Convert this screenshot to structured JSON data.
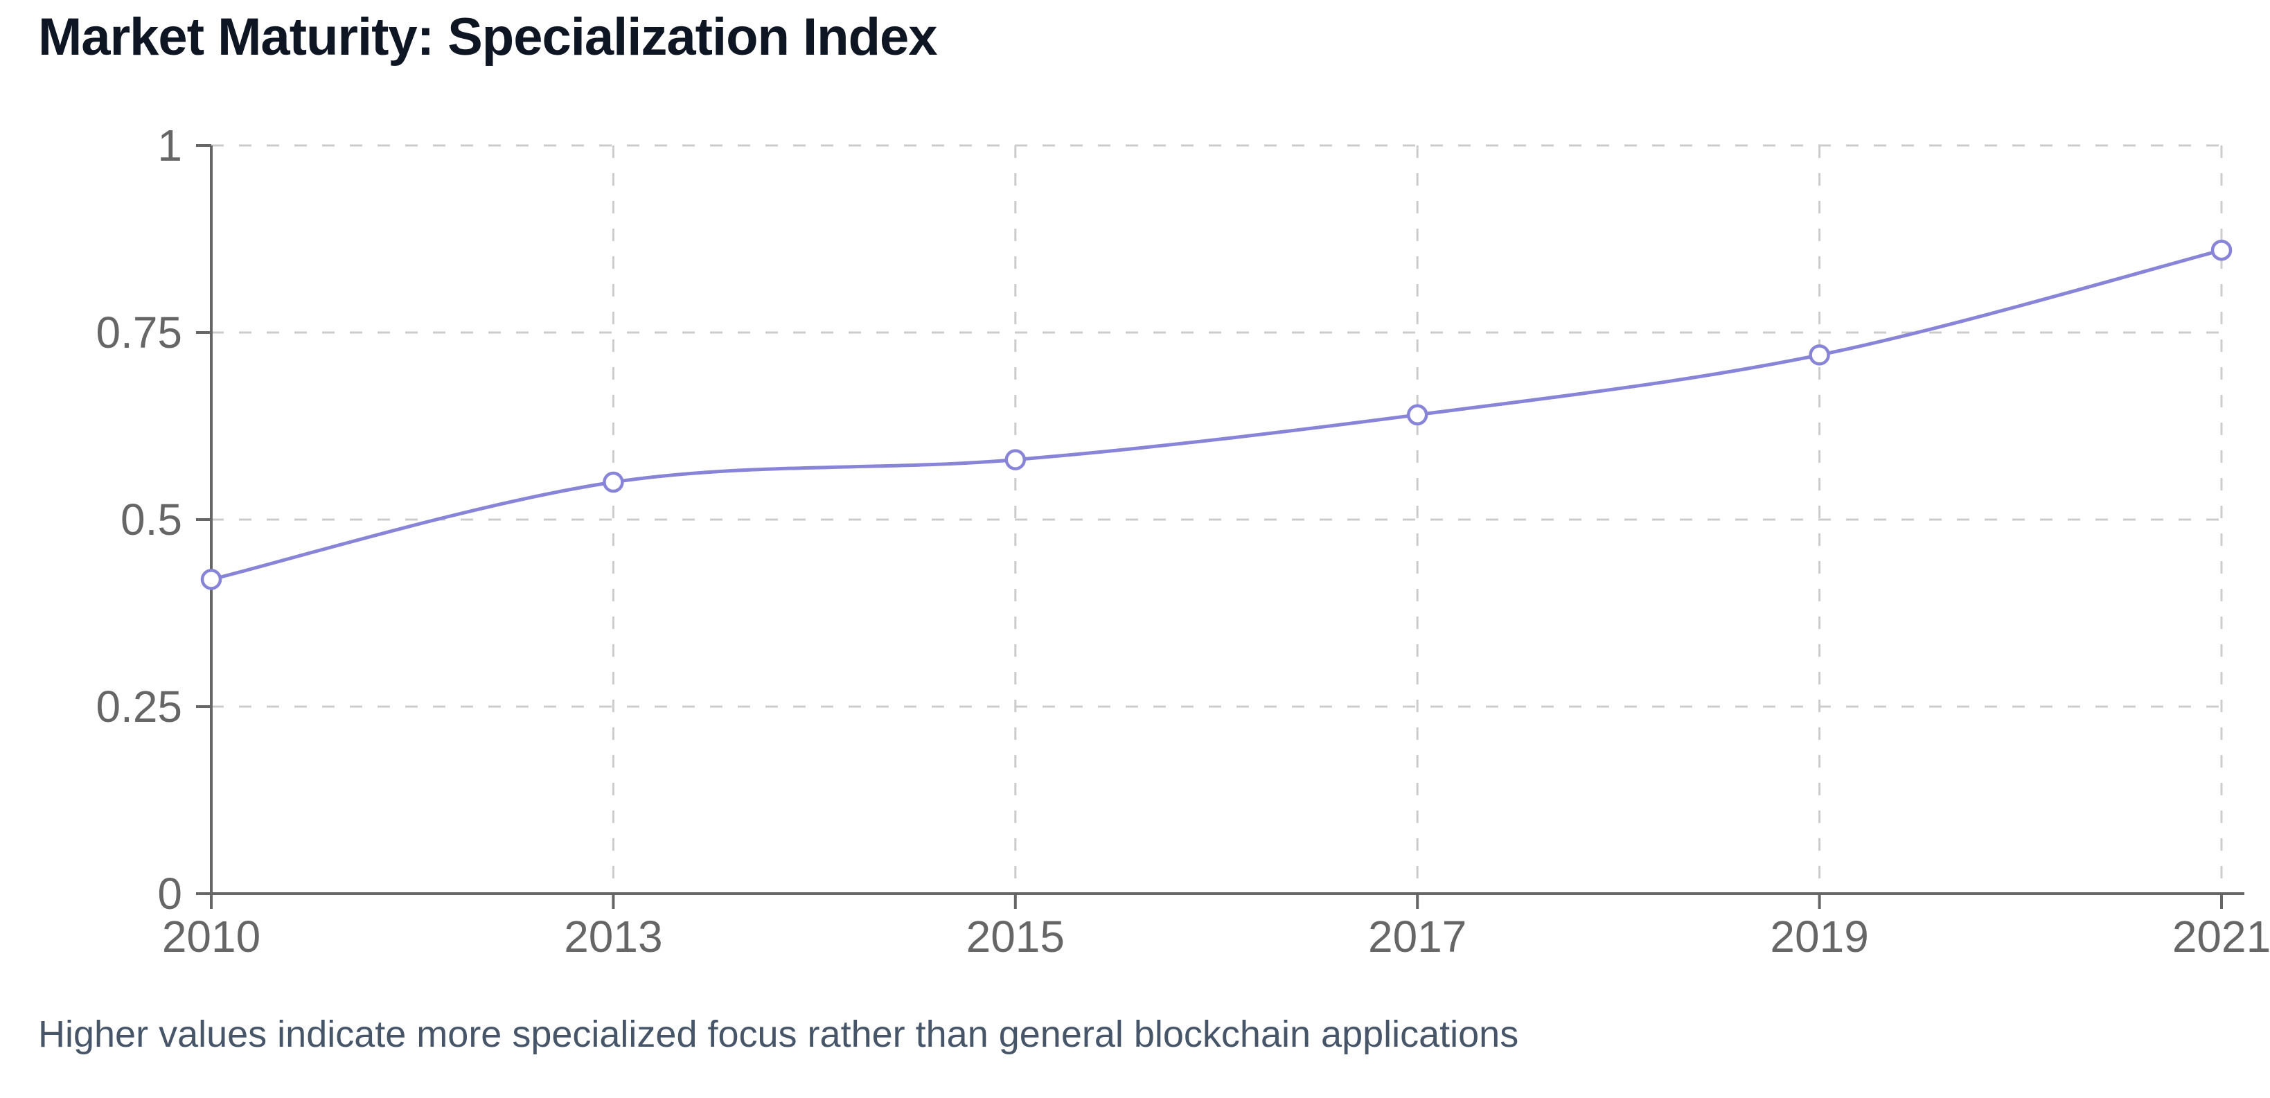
{
  "page": {
    "title": "Market Maturity: Specialization Index",
    "caption": "Higher values indicate more specialized focus rather than general blockchain applications"
  },
  "chart_data": {
    "type": "line",
    "title": "Market Maturity: Specialization Index",
    "categories": [
      "2010",
      "2013",
      "2015",
      "2017",
      "2019",
      "2021"
    ],
    "series": [
      {
        "name": "Specialization Index",
        "values": [
          0.42,
          0.55,
          0.58,
          0.64,
          0.72,
          0.86
        ]
      }
    ],
    "xlabel": "",
    "ylabel": "",
    "ylim": [
      0,
      1
    ],
    "yticks": [
      0,
      0.25,
      0.5,
      0.75,
      1
    ],
    "ytick_labels": [
      "0",
      "0.25",
      "0.5",
      "0.75",
      "1"
    ],
    "grid": true,
    "grid_style": "dashed",
    "legend_position": "none",
    "curve": "monotone",
    "marker": "open-circle",
    "caption": "Higher values indicate more specialized focus rather than general blockchain applications",
    "colors": {
      "line": "#8884d8",
      "marker_fill": "#ffffff",
      "grid": "#cccccc",
      "axis": "#666666",
      "tick_label": "#666666",
      "title": "#0f1623",
      "caption": "#475569",
      "background": "#ffffff"
    }
  }
}
